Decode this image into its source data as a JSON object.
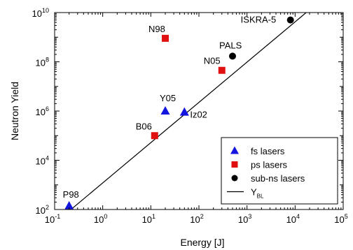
{
  "chart_data": {
    "type": "scatter",
    "title": "",
    "xlabel": "Energy [J]",
    "ylabel": "Neutron Yield",
    "x_scale": "log",
    "y_scale": "log",
    "xlim": [
      0.1,
      100000
    ],
    "ylim": [
      100,
      10000000000
    ],
    "x_ticks": [
      0.1,
      1,
      10,
      100,
      1000,
      10000,
      100000
    ],
    "x_tick_labels": [
      {
        "base": "10",
        "exp": "-1"
      },
      {
        "base": "10",
        "exp": "0"
      },
      {
        "base": "10",
        "exp": "1"
      },
      {
        "base": "10",
        "exp": "2"
      },
      {
        "base": "10",
        "exp": "3"
      },
      {
        "base": "10",
        "exp": "4"
      },
      {
        "base": "10",
        "exp": "5"
      }
    ],
    "y_ticks": [
      100,
      10000,
      1000000,
      100000000,
      10000000000
    ],
    "y_tick_labels": [
      {
        "base": "10",
        "exp": "2"
      },
      {
        "base": "10",
        "exp": "4"
      },
      {
        "base": "10",
        "exp": "6"
      },
      {
        "base": "10",
        "exp": "8"
      },
      {
        "base": "10",
        "exp": "10"
      }
    ],
    "grid": false,
    "legend_position": "bottom-right",
    "series": [
      {
        "name": "fs lasers",
        "marker": "triangle",
        "color": "#1515e0",
        "points": [
          {
            "label": "P98",
            "x": 0.2,
            "y": 140
          },
          {
            "label": "Y05",
            "x": 20,
            "y": 1000000
          },
          {
            "label": "Iz02",
            "x": 50,
            "y": 900000
          }
        ]
      },
      {
        "name": "ps lasers",
        "marker": "square",
        "color": "#e01010",
        "points": [
          {
            "label": "B06",
            "x": 12,
            "y": 100000
          },
          {
            "label": "N98",
            "x": 20,
            "y": 900000000
          },
          {
            "label": "N05",
            "x": 300,
            "y": 45000000
          }
        ]
      },
      {
        "name": "sub-ns lasers",
        "marker": "circle",
        "color": "#000000",
        "points": [
          {
            "label": "PALS",
            "x": 500,
            "y": 170000000
          },
          {
            "label": "ISKRA-5",
            "x": 8000,
            "y": 5000000000
          }
        ]
      }
    ],
    "fit_line": {
      "name": "Y",
      "name_sub": "BL",
      "color": "#000000",
      "x": [
        0.16,
        17000
      ],
      "y": [
        60,
        10000000000
      ]
    }
  }
}
